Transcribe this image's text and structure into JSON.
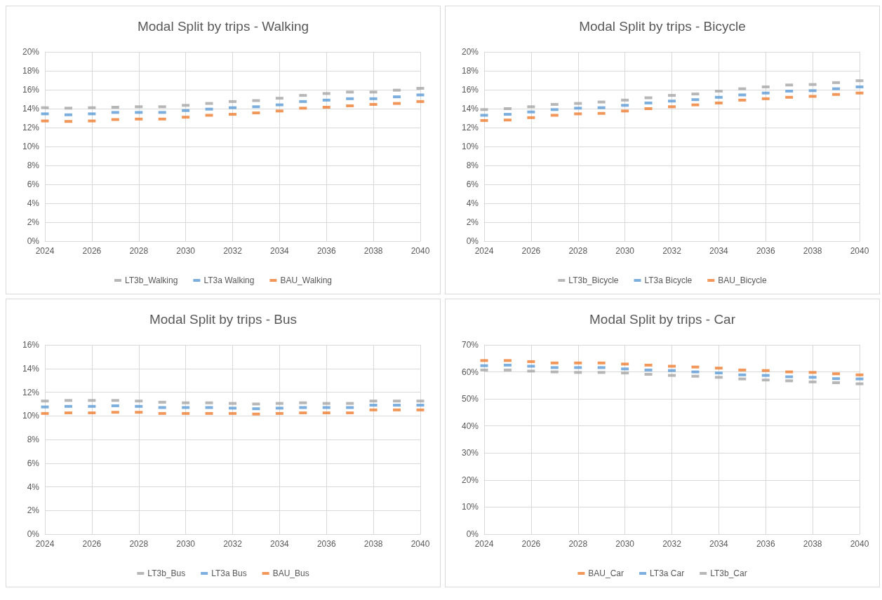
{
  "chart_data": [
    {
      "type": "scatter",
      "title": "Modal Split by trips - Walking",
      "x": [
        2024,
        2025,
        2026,
        2027,
        2028,
        2029,
        2030,
        2031,
        2032,
        2033,
        2034,
        2035,
        2036,
        2037,
        2038,
        2039,
        2040
      ],
      "xlim": [
        2024,
        2040
      ],
      "xticks": [
        2024,
        2026,
        2028,
        2030,
        2032,
        2034,
        2036,
        2038,
        2040
      ],
      "ylim": [
        0,
        20
      ],
      "yticks": [
        {
          "value": 0,
          "label": "0%"
        },
        {
          "value": 2,
          "label": "2%"
        },
        {
          "value": 4,
          "label": "4%"
        },
        {
          "value": 6,
          "label": "6%"
        },
        {
          "value": 8,
          "label": "8%"
        },
        {
          "value": 10,
          "label": "10%"
        },
        {
          "value": 12,
          "label": "12%"
        },
        {
          "value": 14,
          "label": "14%"
        },
        {
          "value": 16,
          "label": "16%"
        },
        {
          "value": 18,
          "label": "18%"
        },
        {
          "value": 20,
          "label": "20%"
        }
      ],
      "grid": true,
      "legend": "bottom",
      "marker": "square",
      "series": [
        {
          "name": "LT3b_Walking",
          "color": "#a5a5a5",
          "values": [
            14.1,
            14.05,
            14.1,
            14.15,
            14.2,
            14.2,
            14.35,
            14.55,
            14.75,
            14.85,
            15.1,
            15.4,
            15.6,
            15.75,
            15.75,
            15.95,
            16.15
          ]
        },
        {
          "name": "LT3a Walking",
          "color": "#5b9bd5",
          "values": [
            13.45,
            13.35,
            13.45,
            13.6,
            13.6,
            13.6,
            13.8,
            13.95,
            14.1,
            14.2,
            14.4,
            14.75,
            14.9,
            15.05,
            15.05,
            15.25,
            15.45
          ]
        },
        {
          "name": "BAU_Walking",
          "color": "#ed7d31",
          "values": [
            12.7,
            12.65,
            12.7,
            12.85,
            12.9,
            12.9,
            13.1,
            13.3,
            13.4,
            13.55,
            13.75,
            14.05,
            14.15,
            14.3,
            14.45,
            14.55,
            14.75
          ]
        }
      ]
    },
    {
      "type": "scatter",
      "title": "Modal Split by trips - Bicycle",
      "x": [
        2024,
        2025,
        2026,
        2027,
        2028,
        2029,
        2030,
        2031,
        2032,
        2033,
        2034,
        2035,
        2036,
        2037,
        2038,
        2039,
        2040
      ],
      "xlim": [
        2024,
        2040
      ],
      "xticks": [
        2024,
        2026,
        2028,
        2030,
        2032,
        2034,
        2036,
        2038,
        2040
      ],
      "ylim": [
        0,
        20
      ],
      "yticks": [
        {
          "value": 0,
          "label": "0%"
        },
        {
          "value": 2,
          "label": "2%"
        },
        {
          "value": 4,
          "label": "4%"
        },
        {
          "value": 6,
          "label": "6%"
        },
        {
          "value": 8,
          "label": "8%"
        },
        {
          "value": 10,
          "label": "10%"
        },
        {
          "value": 12,
          "label": "12%"
        },
        {
          "value": 14,
          "label": "14%"
        },
        {
          "value": 16,
          "label": "16%"
        },
        {
          "value": 18,
          "label": "18%"
        },
        {
          "value": 20,
          "label": "20%"
        }
      ],
      "grid": true,
      "legend": "bottom",
      "marker": "square",
      "series": [
        {
          "name": "LT3b_Bicycle",
          "color": "#a5a5a5",
          "values": [
            13.9,
            14.0,
            14.2,
            14.45,
            14.55,
            14.7,
            14.9,
            15.15,
            15.4,
            15.55,
            15.85,
            16.1,
            16.3,
            16.5,
            16.55,
            16.75,
            16.95
          ]
        },
        {
          "name": "LT3a Bicycle",
          "color": "#5b9bd5",
          "values": [
            13.3,
            13.4,
            13.65,
            13.9,
            14.05,
            14.1,
            14.35,
            14.6,
            14.8,
            14.95,
            15.2,
            15.45,
            15.65,
            15.85,
            15.9,
            16.1,
            16.3
          ]
        },
        {
          "name": "BAU_Bicycle",
          "color": "#ed7d31",
          "values": [
            12.75,
            12.8,
            13.05,
            13.3,
            13.45,
            13.5,
            13.75,
            14.0,
            14.2,
            14.4,
            14.6,
            14.9,
            15.05,
            15.2,
            15.3,
            15.5,
            15.65
          ]
        }
      ]
    },
    {
      "type": "scatter",
      "title": "Modal Split by trips - Bus",
      "x": [
        2024,
        2025,
        2026,
        2027,
        2028,
        2029,
        2030,
        2031,
        2032,
        2033,
        2034,
        2035,
        2036,
        2037,
        2038,
        2039,
        2040
      ],
      "xlim": [
        2024,
        2040
      ],
      "xticks": [
        2024,
        2026,
        2028,
        2030,
        2032,
        2034,
        2036,
        2038,
        2040
      ],
      "ylim": [
        0,
        16
      ],
      "yticks": [
        {
          "value": 0,
          "label": "0%"
        },
        {
          "value": 2,
          "label": "2%"
        },
        {
          "value": 4,
          "label": "4%"
        },
        {
          "value": 6,
          "label": "6%"
        },
        {
          "value": 8,
          "label": "8%"
        },
        {
          "value": 10,
          "label": "10%"
        },
        {
          "value": 12,
          "label": "12%"
        },
        {
          "value": 14,
          "label": "14%"
        },
        {
          "value": 16,
          "label": "16%"
        }
      ],
      "grid": true,
      "legend": "bottom",
      "marker": "square",
      "series": [
        {
          "name": "LT3b_Bus",
          "color": "#a5a5a5",
          "values": [
            11.25,
            11.3,
            11.3,
            11.3,
            11.25,
            11.15,
            11.1,
            11.1,
            11.05,
            11.0,
            11.05,
            11.1,
            11.05,
            11.05,
            11.25,
            11.25,
            11.25
          ]
        },
        {
          "name": "LT3a Bus",
          "color": "#5b9bd5",
          "values": [
            10.75,
            10.8,
            10.8,
            10.85,
            10.8,
            10.7,
            10.7,
            10.7,
            10.65,
            10.6,
            10.65,
            10.7,
            10.7,
            10.7,
            10.9,
            10.9,
            10.9
          ]
        },
        {
          "name": "BAU_Bus",
          "color": "#ed7d31",
          "values": [
            10.2,
            10.25,
            10.25,
            10.3,
            10.3,
            10.2,
            10.2,
            10.2,
            10.2,
            10.15,
            10.2,
            10.25,
            10.25,
            10.25,
            10.5,
            10.5,
            10.5
          ]
        }
      ]
    },
    {
      "type": "scatter",
      "title": "Modal Split by trips - Car",
      "x": [
        2024,
        2025,
        2026,
        2027,
        2028,
        2029,
        2030,
        2031,
        2032,
        2033,
        2034,
        2035,
        2036,
        2037,
        2038,
        2039,
        2040
      ],
      "xlim": [
        2024,
        2040
      ],
      "xticks": [
        2024,
        2026,
        2028,
        2030,
        2032,
        2034,
        2036,
        2038,
        2040
      ],
      "ylim": [
        0,
        70
      ],
      "yticks": [
        {
          "value": 0,
          "label": "0%"
        },
        {
          "value": 10,
          "label": "10%"
        },
        {
          "value": 20,
          "label": "20%"
        },
        {
          "value": 30,
          "label": "30%"
        },
        {
          "value": 40,
          "label": "40%"
        },
        {
          "value": 50,
          "label": "50%"
        },
        {
          "value": 60,
          "label": "60%"
        },
        {
          "value": 70,
          "label": "70%"
        }
      ],
      "grid": true,
      "legend": "bottom",
      "marker": "square",
      "series": [
        {
          "name": "BAU_Car",
          "color": "#ed7d31",
          "values": [
            64.2,
            64.2,
            63.8,
            63.3,
            63.3,
            63.3,
            62.9,
            62.5,
            62.1,
            61.8,
            61.4,
            60.7,
            60.5,
            60.0,
            59.8,
            59.3,
            58.9
          ]
        },
        {
          "name": "LT3a Car",
          "color": "#5b9bd5",
          "values": [
            62.3,
            62.5,
            62.1,
            61.6,
            61.6,
            61.6,
            61.1,
            60.7,
            60.5,
            60.0,
            59.6,
            58.9,
            58.7,
            58.2,
            58.0,
            57.5,
            57.4
          ]
        },
        {
          "name": "LT3b_Car",
          "color": "#a5a5a5",
          "values": [
            60.7,
            60.7,
            60.3,
            60.0,
            59.8,
            59.8,
            59.6,
            59.1,
            58.7,
            58.4,
            58.0,
            57.4,
            57.0,
            56.7,
            56.3,
            56.0,
            55.6
          ]
        }
      ]
    }
  ]
}
